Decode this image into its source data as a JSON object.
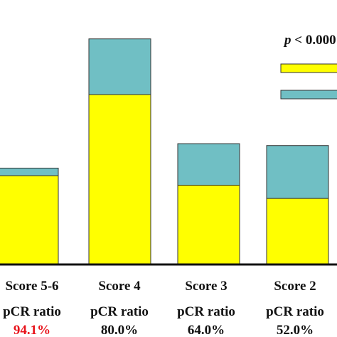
{
  "chart_data": {
    "type": "bar",
    "stacked": true,
    "categories": [
      "Score 5-6",
      "Score 4",
      "Score 3",
      "Score 2"
    ],
    "series": [
      {
        "color": "#ffff00",
        "values": [
          94.1,
          180.0,
          84.0,
          70.0
        ]
      },
      {
        "color": "#70bfc4",
        "values": [
          8.0,
          59.0,
          44.0,
          56.0
        ]
      }
    ],
    "ylim": [
      0,
      235
    ],
    "annotation": {
      "p_prefix": "p",
      "p_text": " < 0.000"
    },
    "bar_labels": [
      {
        "label": "pCR ratio",
        "value": "94.1%",
        "color": "#e8141c"
      },
      {
        "label": "pCR ratio",
        "value": "80.0%",
        "color": "#111111"
      },
      {
        "label": "pCR ratio",
        "value": "64.0%",
        "color": "#111111"
      },
      {
        "label": "pCR ratio",
        "value": "52.0%",
        "color": "#111111"
      }
    ],
    "legend_placement": "top-right"
  }
}
